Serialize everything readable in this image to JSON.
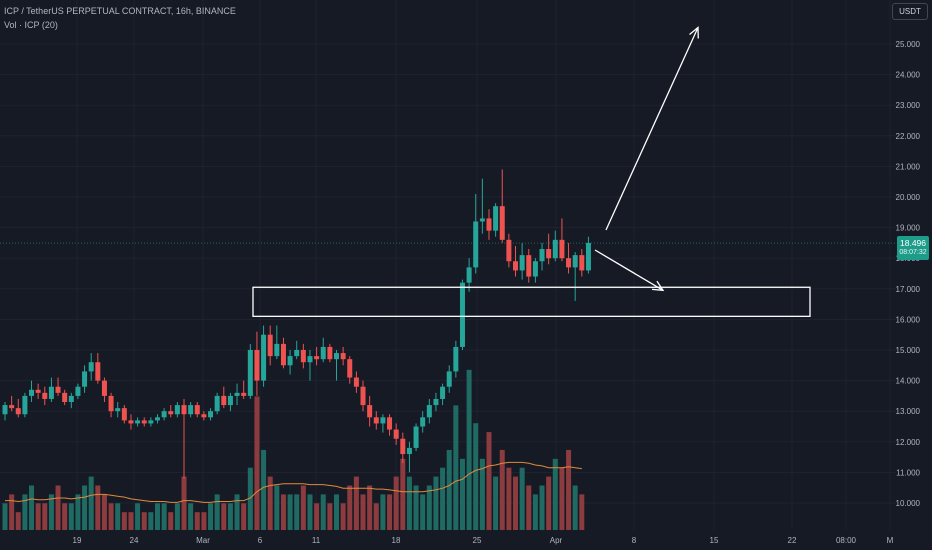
{
  "header": {
    "title": "ICP / TetherUS PERPETUAL CONTRACT, 16h, BINANCE",
    "volume_label": "Vol · ICP (20)"
  },
  "currency_button": "USDT",
  "price_badge": {
    "price": "18.496",
    "countdown": "08:07:32"
  },
  "colors": {
    "background": "#161a25",
    "up": "#26a69a",
    "down": "#ef5350",
    "volume_up": "#1f6b63",
    "volume_down": "#8c3b3e",
    "volume_ma": "#e08a3c",
    "annotation": "#ffffff",
    "axis_text": "#b2b5be"
  },
  "chart_data": {
    "type": "candlestick",
    "symbol": "ICP/USDT Perpetual",
    "interval": "16h",
    "y_axis": {
      "ticks": [
        "25.000",
        "24.000",
        "23.000",
        "22.000",
        "21.000",
        "20.000",
        "19.000",
        "18.000",
        "17.000",
        "16.000",
        "15.000",
        "14.000",
        "13.000",
        "12.000",
        "11.000",
        "10.000"
      ],
      "range": [
        9.6,
        25.8
      ]
    },
    "x_axis": {
      "ticks": [
        "19",
        "24",
        "Mar",
        "6",
        "11",
        "18",
        "25",
        "Apr",
        "8",
        "15",
        "22",
        "08:00",
        "M"
      ]
    },
    "candles": [
      {
        "o": 12.9,
        "h": 13.3,
        "l": 12.7,
        "c": 13.2
      },
      {
        "o": 13.2,
        "h": 13.5,
        "l": 13.0,
        "c": 13.1
      },
      {
        "o": 13.1,
        "h": 13.4,
        "l": 12.8,
        "c": 12.9
      },
      {
        "o": 12.9,
        "h": 13.6,
        "l": 12.8,
        "c": 13.5
      },
      {
        "o": 13.5,
        "h": 14.0,
        "l": 13.3,
        "c": 13.7
      },
      {
        "o": 13.7,
        "h": 13.9,
        "l": 13.4,
        "c": 13.6
      },
      {
        "o": 13.6,
        "h": 13.8,
        "l": 13.2,
        "c": 13.4
      },
      {
        "o": 13.4,
        "h": 14.1,
        "l": 13.3,
        "c": 13.8
      },
      {
        "o": 13.8,
        "h": 14.1,
        "l": 13.5,
        "c": 13.6
      },
      {
        "o": 13.6,
        "h": 13.7,
        "l": 13.2,
        "c": 13.3
      },
      {
        "o": 13.3,
        "h": 13.6,
        "l": 13.1,
        "c": 13.5
      },
      {
        "o": 13.5,
        "h": 13.9,
        "l": 13.4,
        "c": 13.8
      },
      {
        "o": 13.8,
        "h": 14.5,
        "l": 13.6,
        "c": 14.3
      },
      {
        "o": 14.3,
        "h": 14.9,
        "l": 14.0,
        "c": 14.6
      },
      {
        "o": 14.6,
        "h": 14.9,
        "l": 13.9,
        "c": 14.0
      },
      {
        "o": 14.0,
        "h": 14.1,
        "l": 13.3,
        "c": 13.5
      },
      {
        "o": 13.5,
        "h": 13.6,
        "l": 12.8,
        "c": 13.0
      },
      {
        "o": 13.0,
        "h": 13.3,
        "l": 12.8,
        "c": 13.1
      },
      {
        "o": 13.1,
        "h": 13.2,
        "l": 12.6,
        "c": 12.7
      },
      {
        "o": 12.7,
        "h": 12.9,
        "l": 12.4,
        "c": 12.6
      },
      {
        "o": 12.6,
        "h": 12.8,
        "l": 12.5,
        "c": 12.7
      },
      {
        "o": 12.7,
        "h": 12.8,
        "l": 12.5,
        "c": 12.6
      },
      {
        "o": 12.6,
        "h": 12.8,
        "l": 12.5,
        "c": 12.7
      },
      {
        "o": 12.7,
        "h": 12.9,
        "l": 12.6,
        "c": 12.8
      },
      {
        "o": 12.8,
        "h": 13.1,
        "l": 12.7,
        "c": 13.0
      },
      {
        "o": 13.0,
        "h": 13.2,
        "l": 12.8,
        "c": 12.9
      },
      {
        "o": 12.9,
        "h": 13.3,
        "l": 12.8,
        "c": 13.2
      },
      {
        "o": 13.2,
        "h": 13.4,
        "l": 10.8,
        "c": 12.9
      },
      {
        "o": 12.9,
        "h": 13.3,
        "l": 12.8,
        "c": 13.2
      },
      {
        "o": 13.2,
        "h": 13.3,
        "l": 12.8,
        "c": 12.9
      },
      {
        "o": 12.9,
        "h": 13.0,
        "l": 12.7,
        "c": 12.8
      },
      {
        "o": 12.8,
        "h": 13.1,
        "l": 12.7,
        "c": 13.0
      },
      {
        "o": 13.0,
        "h": 13.6,
        "l": 12.9,
        "c": 13.5
      },
      {
        "o": 13.5,
        "h": 13.8,
        "l": 13.1,
        "c": 13.2
      },
      {
        "o": 13.2,
        "h": 13.6,
        "l": 13.0,
        "c": 13.5
      },
      {
        "o": 13.5,
        "h": 13.9,
        "l": 13.2,
        "c": 13.6
      },
      {
        "o": 13.6,
        "h": 14.0,
        "l": 13.4,
        "c": 13.5
      },
      {
        "o": 13.5,
        "h": 15.2,
        "l": 13.4,
        "c": 15.0
      },
      {
        "o": 15.0,
        "h": 15.6,
        "l": 13.5,
        "c": 14.0
      },
      {
        "o": 14.0,
        "h": 15.8,
        "l": 13.8,
        "c": 15.5
      },
      {
        "o": 15.5,
        "h": 15.8,
        "l": 14.5,
        "c": 14.8
      },
      {
        "o": 14.8,
        "h": 15.8,
        "l": 14.7,
        "c": 15.2
      },
      {
        "o": 15.2,
        "h": 15.4,
        "l": 14.4,
        "c": 14.5
      },
      {
        "o": 14.5,
        "h": 15.0,
        "l": 14.2,
        "c": 14.8
      },
      {
        "o": 14.8,
        "h": 15.3,
        "l": 14.7,
        "c": 15.0
      },
      {
        "o": 15.0,
        "h": 15.2,
        "l": 14.4,
        "c": 14.6
      },
      {
        "o": 14.6,
        "h": 15.0,
        "l": 14.0,
        "c": 14.8
      },
      {
        "o": 14.8,
        "h": 15.1,
        "l": 14.5,
        "c": 14.7
      },
      {
        "o": 14.7,
        "h": 15.4,
        "l": 14.6,
        "c": 15.1
      },
      {
        "o": 15.1,
        "h": 15.2,
        "l": 14.6,
        "c": 14.7
      },
      {
        "o": 14.7,
        "h": 15.0,
        "l": 14.0,
        "c": 14.9
      },
      {
        "o": 14.9,
        "h": 15.1,
        "l": 14.5,
        "c": 14.7
      },
      {
        "o": 14.7,
        "h": 14.8,
        "l": 13.9,
        "c": 14.1
      },
      {
        "o": 14.1,
        "h": 14.3,
        "l": 13.6,
        "c": 13.8
      },
      {
        "o": 13.8,
        "h": 14.0,
        "l": 13.0,
        "c": 13.2
      },
      {
        "o": 13.2,
        "h": 13.5,
        "l": 12.5,
        "c": 12.8
      },
      {
        "o": 12.8,
        "h": 13.0,
        "l": 12.4,
        "c": 12.6
      },
      {
        "o": 12.6,
        "h": 12.9,
        "l": 12.3,
        "c": 12.8
      },
      {
        "o": 12.8,
        "h": 12.9,
        "l": 12.2,
        "c": 12.4
      },
      {
        "o": 12.4,
        "h": 12.6,
        "l": 11.9,
        "c": 12.1
      },
      {
        "o": 12.1,
        "h": 12.3,
        "l": 11.3,
        "c": 11.6
      },
      {
        "o": 11.6,
        "h": 12.0,
        "l": 11.0,
        "c": 11.8
      },
      {
        "o": 11.8,
        "h": 12.6,
        "l": 11.7,
        "c": 12.5
      },
      {
        "o": 12.5,
        "h": 13.0,
        "l": 12.3,
        "c": 12.8
      },
      {
        "o": 12.8,
        "h": 13.4,
        "l": 12.6,
        "c": 13.2
      },
      {
        "o": 13.2,
        "h": 13.6,
        "l": 13.0,
        "c": 13.4
      },
      {
        "o": 13.4,
        "h": 13.9,
        "l": 13.2,
        "c": 13.8
      },
      {
        "o": 13.8,
        "h": 14.5,
        "l": 13.6,
        "c": 14.3
      },
      {
        "o": 14.3,
        "h": 15.3,
        "l": 14.1,
        "c": 15.1
      },
      {
        "o": 15.1,
        "h": 17.3,
        "l": 15.0,
        "c": 17.2
      },
      {
        "o": 17.2,
        "h": 18.0,
        "l": 16.9,
        "c": 17.7
      },
      {
        "o": 17.7,
        "h": 20.1,
        "l": 17.5,
        "c": 19.2
      },
      {
        "o": 19.2,
        "h": 20.6,
        "l": 18.8,
        "c": 19.3
      },
      {
        "o": 19.3,
        "h": 19.6,
        "l": 18.6,
        "c": 18.9
      },
      {
        "o": 18.9,
        "h": 19.8,
        "l": 18.7,
        "c": 19.7
      },
      {
        "o": 19.7,
        "h": 20.9,
        "l": 18.5,
        "c": 18.6
      },
      {
        "o": 18.6,
        "h": 18.8,
        "l": 17.7,
        "c": 17.9
      },
      {
        "o": 17.9,
        "h": 18.4,
        "l": 17.4,
        "c": 17.6
      },
      {
        "o": 17.6,
        "h": 18.5,
        "l": 17.3,
        "c": 18.1
      },
      {
        "o": 18.1,
        "h": 18.3,
        "l": 17.2,
        "c": 17.4
      },
      {
        "o": 17.4,
        "h": 18.0,
        "l": 17.2,
        "c": 17.9
      },
      {
        "o": 17.9,
        "h": 18.5,
        "l": 17.6,
        "c": 18.3
      },
      {
        "o": 18.3,
        "h": 18.8,
        "l": 17.8,
        "c": 18.0
      },
      {
        "o": 18.0,
        "h": 18.9,
        "l": 17.9,
        "c": 18.6
      },
      {
        "o": 18.6,
        "h": 19.3,
        "l": 17.9,
        "c": 18.0
      },
      {
        "o": 18.0,
        "h": 18.5,
        "l": 17.5,
        "c": 17.7
      },
      {
        "o": 17.7,
        "h": 18.2,
        "l": 16.6,
        "c": 18.1
      },
      {
        "o": 18.1,
        "h": 18.3,
        "l": 17.4,
        "c": 17.6
      },
      {
        "o": 17.6,
        "h": 18.7,
        "l": 17.5,
        "c": 18.5
      }
    ],
    "volumes": [
      3,
      4,
      2,
      4,
      5,
      3,
      3,
      4,
      5,
      3,
      3,
      4,
      5,
      6,
      5,
      4,
      3,
      3,
      2,
      2,
      3,
      2,
      2,
      3,
      3,
      2,
      3,
      6,
      3,
      2,
      2,
      3,
      4,
      3,
      3,
      4,
      3,
      7,
      15,
      9,
      6,
      5,
      4,
      4,
      4,
      5,
      4,
      3,
      4,
      3,
      4,
      3,
      5,
      6,
      4,
      5,
      3,
      4,
      4,
      6,
      8,
      6,
      5,
      4,
      5,
      6,
      7,
      9,
      14,
      8,
      18,
      12,
      8,
      11,
      6,
      9,
      7,
      6,
      7,
      5,
      4,
      5,
      6,
      8,
      7,
      9,
      5,
      4
    ],
    "volume_ma": [
      3.3,
      3.3,
      3.2,
      3.3,
      3.5,
      3.4,
      3.4,
      3.5,
      3.6,
      3.6,
      3.5,
      3.6,
      3.7,
      3.9,
      4.0,
      4.0,
      3.9,
      3.8,
      3.7,
      3.5,
      3.4,
      3.3,
      3.2,
      3.2,
      3.2,
      3.1,
      3.1,
      3.3,
      3.3,
      3.2,
      3.1,
      3.1,
      3.2,
      3.2,
      3.2,
      3.3,
      3.3,
      3.6,
      4.3,
      4.8,
      5.0,
      5.1,
      5.2,
      5.2,
      5.2,
      5.2,
      5.1,
      5.1,
      5.1,
      5.0,
      4.9,
      4.7,
      4.7,
      4.7,
      4.7,
      4.7,
      4.6,
      4.6,
      4.5,
      4.4,
      4.3,
      4.3,
      4.3,
      4.3,
      4.4,
      4.5,
      4.7,
      5.0,
      5.5,
      5.7,
      6.3,
      6.7,
      6.9,
      7.2,
      7.3,
      7.5,
      7.6,
      7.6,
      7.6,
      7.5,
      7.3,
      7.2,
      7.0,
      7.0,
      7.0,
      7.1,
      7.0,
      6.9
    ],
    "last_price": 18.496,
    "annotations": {
      "support_zone": {
        "from": 16.1,
        "to": 17.05
      },
      "bullish_arrow_target": 25.8,
      "bearish_arrow_target": 16.95
    }
  }
}
